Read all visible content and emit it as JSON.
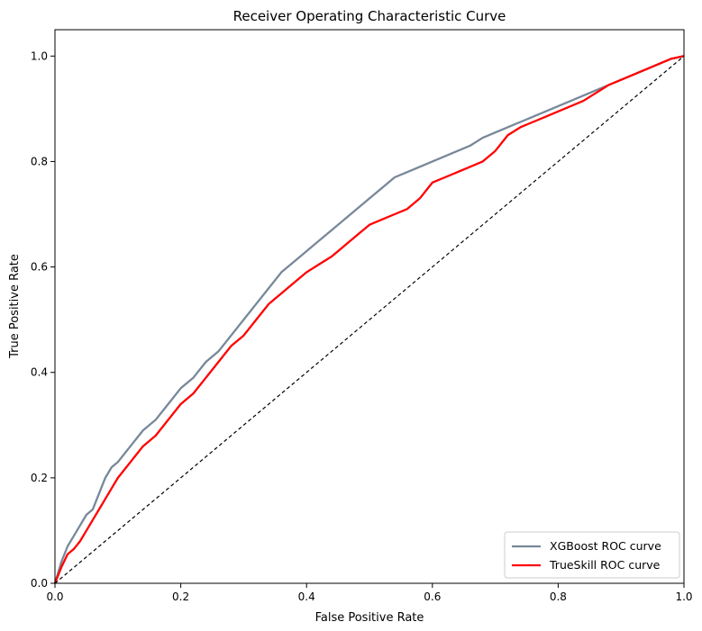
{
  "chart_data": {
    "type": "line",
    "title": "Receiver Operating Characteristic Curve",
    "xlabel": "False Positive Rate",
    "ylabel": "True Positive Rate",
    "xlim": [
      0.0,
      1.0
    ],
    "ylim": [
      0.0,
      1.05
    ],
    "xticks": [
      "0.0",
      "0.2",
      "0.4",
      "0.6",
      "0.8",
      "1.0"
    ],
    "yticks": [
      "0.0",
      "0.2",
      "0.4",
      "0.6",
      "0.8",
      "1.0"
    ],
    "grid": false,
    "legend_position": "lower-right",
    "series": [
      {
        "name": "XGBoost ROC curve",
        "color": "#778899",
        "x": [
          0.0,
          0.005,
          0.01,
          0.02,
          0.03,
          0.04,
          0.05,
          0.06,
          0.07,
          0.08,
          0.09,
          0.1,
          0.12,
          0.14,
          0.16,
          0.18,
          0.2,
          0.22,
          0.24,
          0.26,
          0.28,
          0.3,
          0.32,
          0.34,
          0.36,
          0.38,
          0.4,
          0.42,
          0.44,
          0.46,
          0.48,
          0.5,
          0.52,
          0.54,
          0.56,
          0.58,
          0.6,
          0.62,
          0.64,
          0.66,
          0.68,
          0.7,
          0.72,
          0.74,
          0.76,
          0.78,
          0.8,
          0.82,
          0.84,
          0.86,
          0.88,
          0.9,
          0.92,
          0.94,
          0.96,
          0.98,
          1.0
        ],
        "y": [
          0.0,
          0.02,
          0.04,
          0.07,
          0.09,
          0.11,
          0.13,
          0.14,
          0.17,
          0.2,
          0.22,
          0.23,
          0.26,
          0.29,
          0.31,
          0.34,
          0.37,
          0.39,
          0.42,
          0.44,
          0.47,
          0.5,
          0.53,
          0.56,
          0.59,
          0.61,
          0.63,
          0.65,
          0.67,
          0.69,
          0.71,
          0.73,
          0.75,
          0.77,
          0.78,
          0.79,
          0.8,
          0.81,
          0.82,
          0.83,
          0.845,
          0.855,
          0.865,
          0.875,
          0.885,
          0.895,
          0.905,
          0.915,
          0.925,
          0.935,
          0.945,
          0.955,
          0.965,
          0.975,
          0.985,
          0.995,
          1.0
        ]
      },
      {
        "name": "TrueSkill ROC curve",
        "color": "#ff0000",
        "x": [
          0.0,
          0.005,
          0.01,
          0.02,
          0.03,
          0.04,
          0.05,
          0.06,
          0.07,
          0.08,
          0.09,
          0.1,
          0.12,
          0.14,
          0.16,
          0.18,
          0.2,
          0.22,
          0.24,
          0.26,
          0.28,
          0.3,
          0.32,
          0.34,
          0.36,
          0.38,
          0.4,
          0.42,
          0.44,
          0.46,
          0.48,
          0.5,
          0.52,
          0.54,
          0.56,
          0.58,
          0.6,
          0.62,
          0.64,
          0.66,
          0.68,
          0.7,
          0.72,
          0.74,
          0.76,
          0.78,
          0.8,
          0.82,
          0.84,
          0.86,
          0.88,
          0.9,
          0.92,
          0.94,
          0.96,
          0.98,
          1.0
        ],
        "y": [
          0.0,
          0.015,
          0.03,
          0.055,
          0.065,
          0.08,
          0.1,
          0.12,
          0.14,
          0.16,
          0.18,
          0.2,
          0.23,
          0.26,
          0.28,
          0.31,
          0.34,
          0.36,
          0.39,
          0.42,
          0.45,
          0.47,
          0.5,
          0.53,
          0.55,
          0.57,
          0.59,
          0.605,
          0.62,
          0.64,
          0.66,
          0.68,
          0.69,
          0.7,
          0.71,
          0.73,
          0.76,
          0.77,
          0.78,
          0.79,
          0.8,
          0.82,
          0.85,
          0.865,
          0.875,
          0.885,
          0.895,
          0.905,
          0.915,
          0.93,
          0.945,
          0.955,
          0.965,
          0.975,
          0.985,
          0.995,
          1.0
        ]
      },
      {
        "name": "",
        "color": "#000000",
        "style": "dashed",
        "x": [
          0.0,
          1.0
        ],
        "y": [
          0.0,
          1.0
        ]
      }
    ]
  }
}
